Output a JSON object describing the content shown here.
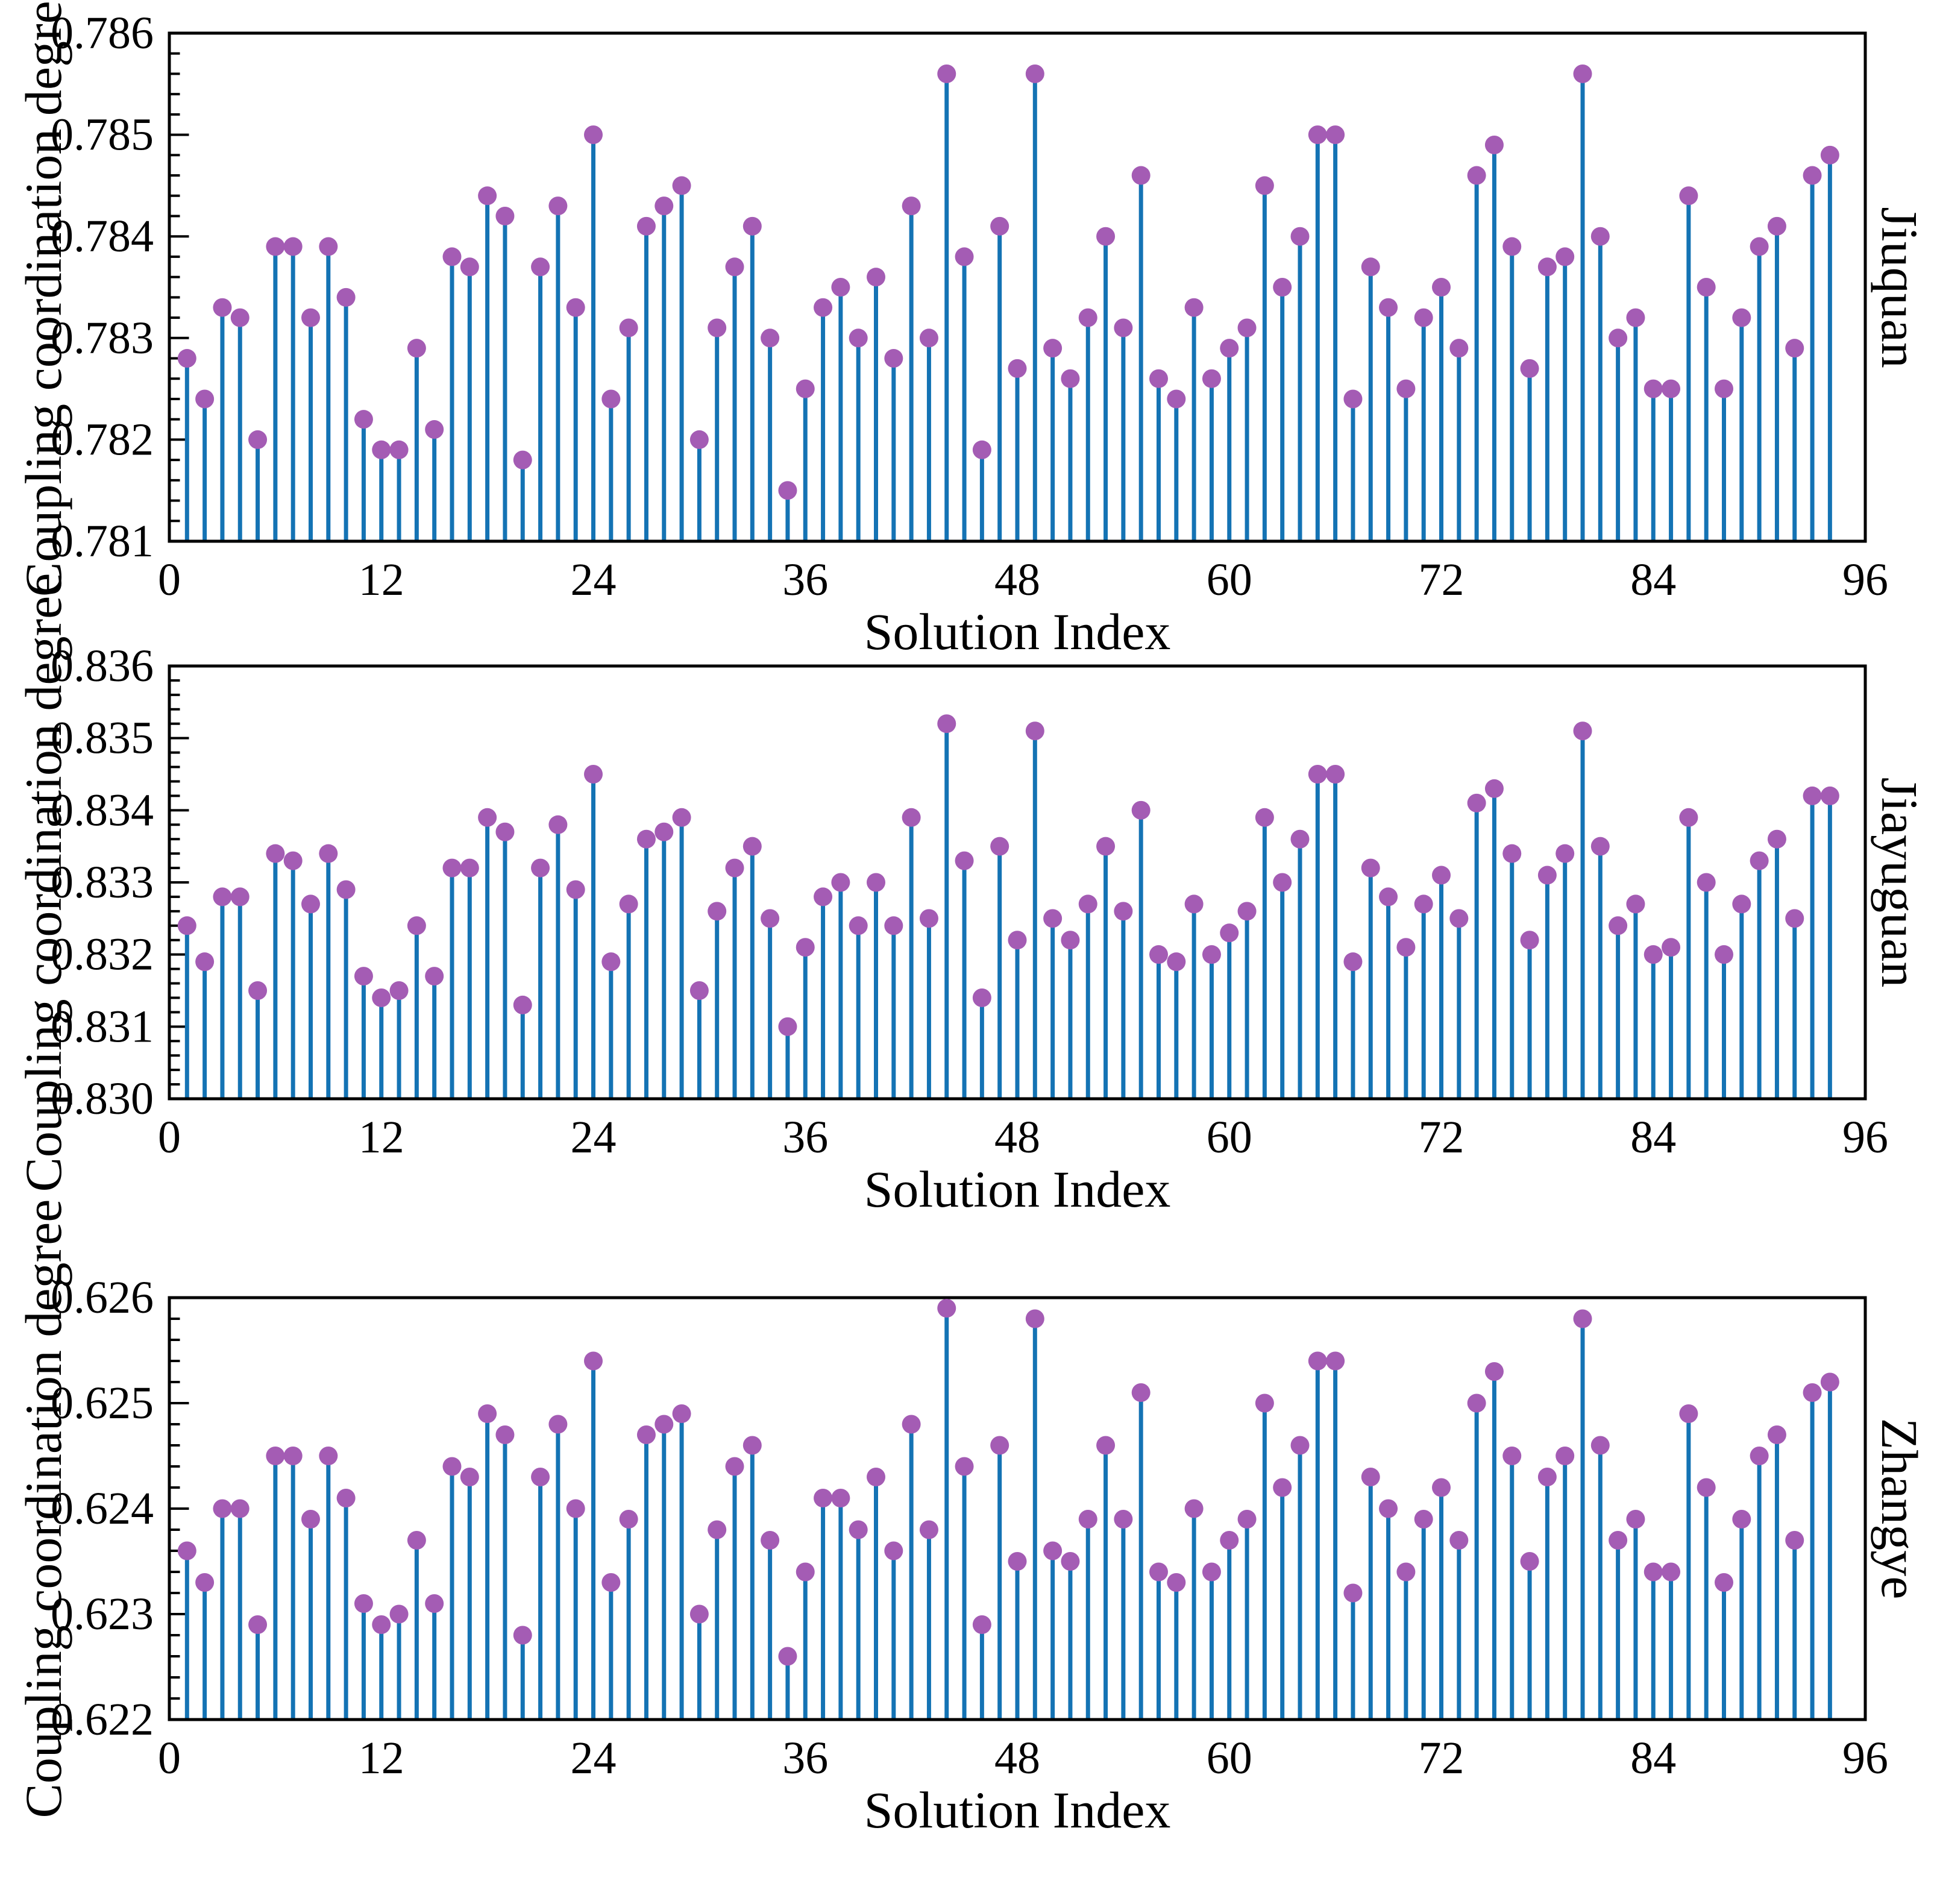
{
  "figure": {
    "background": "#ffffff",
    "stem_color": "#1473b4",
    "marker_color": "#a45cb4",
    "axis_color": "#000000",
    "xlabel": "Solution Index",
    "ylabel": "Coupling coordination degree"
  },
  "chart_data": [
    {
      "type": "stem",
      "title": "Jiuquan",
      "xlabel": "Solution Index",
      "ylabel": "Coupling coordination degree",
      "xlim": [
        0,
        96
      ],
      "ylim": [
        0.781,
        0.786
      ],
      "xticks": [
        0,
        12,
        24,
        36,
        48,
        60,
        72,
        84,
        96
      ],
      "ytick_labels": [
        "0.781",
        "0.782",
        "0.783",
        "0.784",
        "0.785",
        "0.786"
      ],
      "x_start_index": 1,
      "values": [
        0.7828,
        0.7824,
        0.7833,
        0.7832,
        0.782,
        0.7839,
        0.7839,
        0.7832,
        0.7839,
        0.7834,
        0.7822,
        0.7819,
        0.7819,
        0.7829,
        0.7821,
        0.7838,
        0.7837,
        0.7844,
        0.7842,
        0.7818,
        0.7837,
        0.7843,
        0.7833,
        0.785,
        0.7824,
        0.7831,
        0.7841,
        0.7843,
        0.7845,
        0.782,
        0.7831,
        0.7837,
        0.7841,
        0.783,
        0.7815,
        0.7825,
        0.7833,
        0.7835,
        0.783,
        0.7836,
        0.7828,
        0.7843,
        0.783,
        0.7856,
        0.7838,
        0.7819,
        0.7841,
        0.7827,
        0.7856,
        0.7829,
        0.7826,
        0.7832,
        0.784,
        0.7831,
        0.7846,
        0.7826,
        0.7824,
        0.7833,
        0.7826,
        0.7829,
        0.7831,
        0.7845,
        0.7835,
        0.784,
        0.785,
        0.785,
        0.7824,
        0.7837,
        0.7833,
        0.7825,
        0.7832,
        0.7835,
        0.7829,
        0.7846,
        0.7849,
        0.7839,
        0.7827,
        0.7837,
        0.7838,
        0.7856,
        0.784,
        0.783,
        0.7832,
        0.7825,
        0.7825,
        0.7844,
        0.7835,
        0.7825,
        0.7832,
        0.7839,
        0.7841,
        0.7829,
        0.7846,
        0.7848
      ]
    },
    {
      "type": "stem",
      "title": "Jiayuguan",
      "xlabel": "Solution Index",
      "ylabel": "Coupling coordination degree",
      "xlim": [
        0,
        96
      ],
      "ylim": [
        0.83,
        0.836
      ],
      "xticks": [
        0,
        12,
        24,
        36,
        48,
        60,
        72,
        84,
        96
      ],
      "ytick_labels": [
        "0.830",
        "0.831",
        "0.832",
        "0.833",
        "0.834",
        "0.835",
        "0.836"
      ],
      "x_start_index": 1,
      "values": [
        0.8324,
        0.8319,
        0.8328,
        0.8328,
        0.8315,
        0.8334,
        0.8333,
        0.8327,
        0.8334,
        0.8329,
        0.8317,
        0.8314,
        0.8315,
        0.8324,
        0.8317,
        0.8332,
        0.8332,
        0.8339,
        0.8337,
        0.8313,
        0.8332,
        0.8338,
        0.8329,
        0.8345,
        0.8319,
        0.8327,
        0.8336,
        0.8337,
        0.8339,
        0.8315,
        0.8326,
        0.8332,
        0.8335,
        0.8325,
        0.831,
        0.8321,
        0.8328,
        0.833,
        0.8324,
        0.833,
        0.8324,
        0.8339,
        0.8325,
        0.8352,
        0.8333,
        0.8314,
        0.8335,
        0.8322,
        0.8351,
        0.8325,
        0.8322,
        0.8327,
        0.8335,
        0.8326,
        0.834,
        0.832,
        0.8319,
        0.8327,
        0.832,
        0.8323,
        0.8326,
        0.8339,
        0.833,
        0.8336,
        0.8345,
        0.8345,
        0.8319,
        0.8332,
        0.8328,
        0.8321,
        0.8327,
        0.8331,
        0.8325,
        0.8341,
        0.8343,
        0.8334,
        0.8322,
        0.8331,
        0.8334,
        0.8351,
        0.8335,
        0.8324,
        0.8327,
        0.832,
        0.8321,
        0.8339,
        0.833,
        0.832,
        0.8327,
        0.8333,
        0.8336,
        0.8325,
        0.8342,
        0.8342
      ]
    },
    {
      "type": "stem",
      "title": "Zhangye",
      "xlabel": "Solution Index",
      "ylabel": "Coupling coordination degree",
      "xlim": [
        0,
        96
      ],
      "ylim": [
        0.622,
        0.626
      ],
      "xticks": [
        0,
        12,
        24,
        36,
        48,
        60,
        72,
        84,
        96
      ],
      "ytick_labels": [
        "0.622",
        "0.623",
        "0.624",
        "0.625",
        "0.626"
      ],
      "x_start_index": 1,
      "values": [
        0.6236,
        0.6233,
        0.624,
        0.624,
        0.6229,
        0.6245,
        0.6245,
        0.6239,
        0.6245,
        0.6241,
        0.6231,
        0.6229,
        0.623,
        0.6237,
        0.6231,
        0.6244,
        0.6243,
        0.6249,
        0.6247,
        0.6228,
        0.6243,
        0.6248,
        0.624,
        0.6254,
        0.6233,
        0.6239,
        0.6247,
        0.6248,
        0.6249,
        0.623,
        0.6238,
        0.6244,
        0.6246,
        0.6237,
        0.6226,
        0.6234,
        0.6241,
        0.6241,
        0.6238,
        0.6243,
        0.6236,
        0.6248,
        0.6238,
        0.6259,
        0.6244,
        0.6229,
        0.6246,
        0.6235,
        0.6258,
        0.6236,
        0.6235,
        0.6239,
        0.6246,
        0.6239,
        0.6251,
        0.6234,
        0.6233,
        0.624,
        0.6234,
        0.6237,
        0.6239,
        0.625,
        0.6242,
        0.6246,
        0.6254,
        0.6254,
        0.6232,
        0.6243,
        0.624,
        0.6234,
        0.6239,
        0.6242,
        0.6237,
        0.625,
        0.6253,
        0.6245,
        0.6235,
        0.6243,
        0.6245,
        0.6258,
        0.6246,
        0.6237,
        0.6239,
        0.6234,
        0.6234,
        0.6249,
        0.6242,
        0.6233,
        0.6239,
        0.6245,
        0.6247,
        0.6237,
        0.6251,
        0.6252
      ]
    }
  ]
}
